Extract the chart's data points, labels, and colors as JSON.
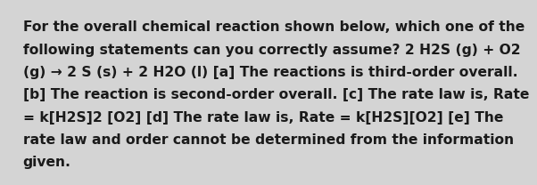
{
  "lines": [
    "For the overall chemical reaction shown below, which one of the",
    "following statements can you correctly assume? 2 H2S (g) + O2",
    "(g) → 2 S (s) + 2 H2O (l) [a] The reactions is third-order overall.",
    "[b] The reaction is second-order overall. [c] The rate law is, Rate",
    "= k[H2S]2 [O2] [d] The rate law is, Rate = k[H2S][O2] [e] The",
    "rate law and order cannot be determined from the information",
    "given."
  ],
  "background_color": "#d4d4d4",
  "text_color": "#1a1a1a",
  "font_size": 11.2,
  "fig_width": 5.58,
  "fig_height": 1.88
}
